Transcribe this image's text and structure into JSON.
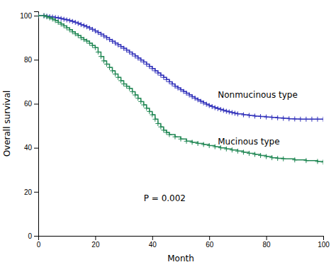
{
  "chart_data": {
    "type": "line",
    "xlabel": "Month",
    "ylabel": "Overall survival",
    "series": [
      {
        "x": [
          0,
          2,
          3,
          4,
          5,
          6,
          7,
          8,
          9,
          10,
          11,
          12,
          13,
          14,
          15,
          16,
          17,
          18,
          19,
          20,
          21,
          22,
          23,
          24,
          25,
          26,
          27,
          28,
          29,
          30,
          31,
          32,
          33,
          34,
          35,
          36,
          37,
          38,
          39,
          40,
          41,
          42,
          43,
          44,
          45,
          46,
          47,
          48,
          49,
          50,
          51,
          52,
          53,
          54,
          55,
          56,
          57,
          58,
          59,
          60,
          61,
          62,
          63,
          64,
          65,
          66,
          67,
          68,
          69,
          70,
          72,
          74,
          76,
          78,
          80,
          82,
          84,
          86,
          88,
          90,
          92,
          94,
          96,
          98,
          100
        ],
        "values": [
          100,
          100,
          99.8,
          99.6,
          99.4,
          99.2,
          99.0,
          98.7,
          98.4,
          98.1,
          97.8,
          97.4,
          97.0,
          96.5,
          96.0,
          95.5,
          95.0,
          94.4,
          93.8,
          93.1,
          92.4,
          91.6,
          90.8,
          90.0,
          89.2,
          88.4,
          87.6,
          86.8,
          86.0,
          85.2,
          84.4,
          83.5,
          82.6,
          81.7,
          80.8,
          79.9,
          79.0,
          78.0,
          77.0,
          76.0,
          75.0,
          74.0,
          73.0,
          72.0,
          71.0,
          70.0,
          69.0,
          68.0,
          67.2,
          66.4,
          65.6,
          64.8,
          64.0,
          63.2,
          62.5,
          61.8,
          61.1,
          60.4,
          59.8,
          59.2,
          58.7,
          58.2,
          57.8,
          57.4,
          57.0,
          56.6,
          56.3,
          56.0,
          55.7,
          55.4,
          55.0,
          54.7,
          54.4,
          54.2,
          54.0,
          53.8,
          53.6,
          53.4,
          53.2,
          53.1,
          53.0,
          53.0,
          53.0,
          53.0,
          53.0
        ],
        "color": "#3333bb",
        "line_style": "step",
        "marker": "+"
      },
      {
        "x": [
          0,
          2,
          3,
          4,
          5,
          6,
          7,
          8,
          9,
          10,
          11,
          12,
          13,
          14,
          15,
          16,
          17,
          18,
          19,
          20,
          21,
          22,
          23,
          24,
          25,
          26,
          27,
          28,
          29,
          30,
          31,
          32,
          33,
          34,
          35,
          36,
          37,
          38,
          39,
          40,
          41,
          42,
          43,
          44,
          45,
          46,
          48,
          50,
          52,
          54,
          56,
          58,
          60,
          62,
          64,
          66,
          68,
          70,
          72,
          74,
          76,
          78,
          80,
          82,
          84,
          86,
          90,
          94,
          98,
          100
        ],
        "values": [
          100,
          100,
          99.5,
          99.0,
          98.5,
          97.8,
          97.0,
          96.2,
          95.4,
          94.5,
          93.6,
          92.7,
          91.8,
          91.0,
          90.0,
          89.2,
          88.5,
          87.5,
          86.5,
          85.5,
          83.5,
          81.5,
          79.5,
          78.0,
          76.5,
          75.0,
          73.5,
          72.0,
          70.5,
          69.0,
          68.0,
          67.0,
          65.5,
          64.0,
          62.5,
          61.0,
          59.5,
          58.0,
          56.5,
          55.0,
          53.0,
          51.0,
          49.5,
          48.0,
          47.0,
          46.0,
          45.0,
          44.0,
          43.0,
          42.5,
          42.0,
          41.5,
          41.0,
          40.5,
          40.0,
          39.5,
          39.0,
          38.5,
          38.0,
          37.5,
          37.0,
          36.5,
          36.0,
          35.5,
          35.2,
          35.0,
          34.5,
          34.2,
          33.8,
          33.5
        ],
        "color": "#228855",
        "line_style": "step",
        "marker": "+"
      }
    ],
    "annotations": [
      {
        "text": "Nonmucinous type",
        "x": 63,
        "y": 64
      },
      {
        "text": "Mucinous type",
        "x": 63,
        "y": 43
      },
      {
        "text": "P = 0.002",
        "x": 37,
        "y": 17
      }
    ],
    "xlim": [
      0,
      100
    ],
    "ylim": [
      0,
      102
    ],
    "xticks": [
      0,
      20,
      40,
      60,
      80,
      100
    ],
    "yticks": [
      0,
      20,
      40,
      60,
      80,
      100
    ],
    "grid": false
  }
}
